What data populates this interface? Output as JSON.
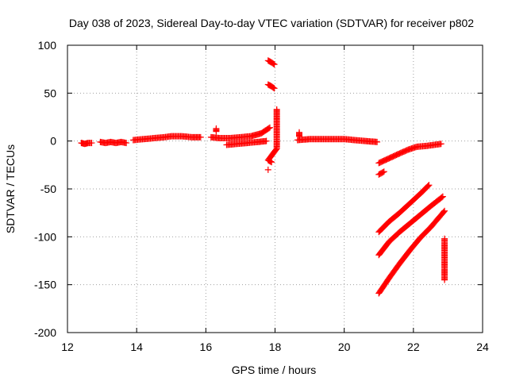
{
  "chart_data": {
    "type": "scatter",
    "title": "Day 038 of 2023, Sidereal Day-to-day VTEC variation (SDTVAR) for receiver p802",
    "xlabel": "GPS time / hours",
    "ylabel": "SDTVAR / TECUs",
    "xlim": [
      12,
      24
    ],
    "ylim": [
      -200,
      100
    ],
    "xticks": [
      12,
      14,
      16,
      18,
      20,
      22,
      24
    ],
    "yticks": [
      -200,
      -150,
      -100,
      -50,
      0,
      50,
      100
    ],
    "grid": true,
    "marker": "+",
    "color": "#ff0000",
    "series": [
      {
        "name": "seg-12.5",
        "x": [
          12.4,
          12.5,
          12.6,
          12.7
        ],
        "y": [
          -2,
          -3,
          -2,
          -2
        ]
      },
      {
        "name": "seg-13.3",
        "x": [
          12.95,
          13.1,
          13.25,
          13.4,
          13.55,
          13.7
        ],
        "y": [
          -1,
          -2,
          -1,
          -2,
          -1,
          -2
        ]
      },
      {
        "name": "seg-14-16",
        "x": [
          13.9,
          14.2,
          14.5,
          14.8,
          15.0,
          15.3,
          15.6,
          15.85
        ],
        "y": [
          1,
          2,
          3,
          4,
          5,
          5,
          4,
          4
        ]
      },
      {
        "name": "seg-16.3-17.8a",
        "x": [
          16.15,
          16.4,
          16.7,
          17.0,
          17.3,
          17.6,
          17.85
        ],
        "y": [
          4,
          3,
          3,
          4,
          5,
          8,
          14
        ]
      },
      {
        "name": "seg-16.6-17.7b",
        "x": [
          16.6,
          16.9,
          17.2,
          17.5,
          17.75
        ],
        "y": [
          -4,
          -3,
          -2,
          -1,
          0
        ]
      },
      {
        "name": "seg-16.3-spike",
        "x": [
          16.3,
          16.3
        ],
        "y": [
          10,
          13
        ]
      },
      {
        "name": "high-83",
        "x": [
          17.8,
          17.9,
          17.98
        ],
        "y": [
          84,
          82,
          80
        ]
      },
      {
        "name": "high-58",
        "x": [
          17.8,
          17.9,
          17.98
        ],
        "y": [
          59,
          57,
          55
        ]
      },
      {
        "name": "spikes-18",
        "x": [
          18.05,
          18.05,
          18.05,
          17.8,
          17.9
        ],
        "y": [
          33,
          8,
          -8,
          -20,
          -22
        ]
      },
      {
        "name": "low-17.8",
        "x": [
          17.8
        ],
        "y": [
          -30
        ]
      },
      {
        "name": "seg-18.7-21",
        "x": [
          18.65,
          19.0,
          19.4,
          19.8,
          20.0,
          20.3,
          20.6,
          20.95
        ],
        "y": [
          1,
          2,
          2,
          2,
          2,
          1,
          0,
          -1
        ]
      },
      {
        "name": "seg-18.7-spike",
        "x": [
          18.7,
          18.7
        ],
        "y": [
          9,
          5
        ]
      },
      {
        "name": "arc-a",
        "x": [
          21.0,
          21.3,
          21.6,
          21.85,
          22.1,
          22.4,
          22.8
        ],
        "y": [
          -23,
          -18,
          -13,
          -9,
          -6,
          -5,
          -3
        ]
      },
      {
        "name": "arc-b",
        "x": [
          21.0,
          21.15
        ],
        "y": [
          -35,
          -32
        ]
      },
      {
        "name": "arc-c",
        "x": [
          21.0,
          21.3,
          21.6,
          21.9,
          22.2,
          22.45
        ],
        "y": [
          -95,
          -84,
          -75,
          -65,
          -55,
          -46
        ]
      },
      {
        "name": "arc-d",
        "x": [
          21.0,
          21.3,
          21.6,
          21.9,
          22.2,
          22.5,
          22.85
        ],
        "y": [
          -119,
          -105,
          -95,
          -86,
          -77,
          -68,
          -58
        ]
      },
      {
        "name": "arc-e",
        "x": [
          21.0,
          21.3,
          21.6,
          21.9,
          22.2,
          22.5,
          22.9
        ],
        "y": [
          -159,
          -143,
          -128,
          -114,
          -101,
          -90,
          -73
        ]
      },
      {
        "name": "points-22.9",
        "x": [
          22.9,
          22.9
        ],
        "y": [
          -102,
          -145
        ]
      }
    ]
  }
}
